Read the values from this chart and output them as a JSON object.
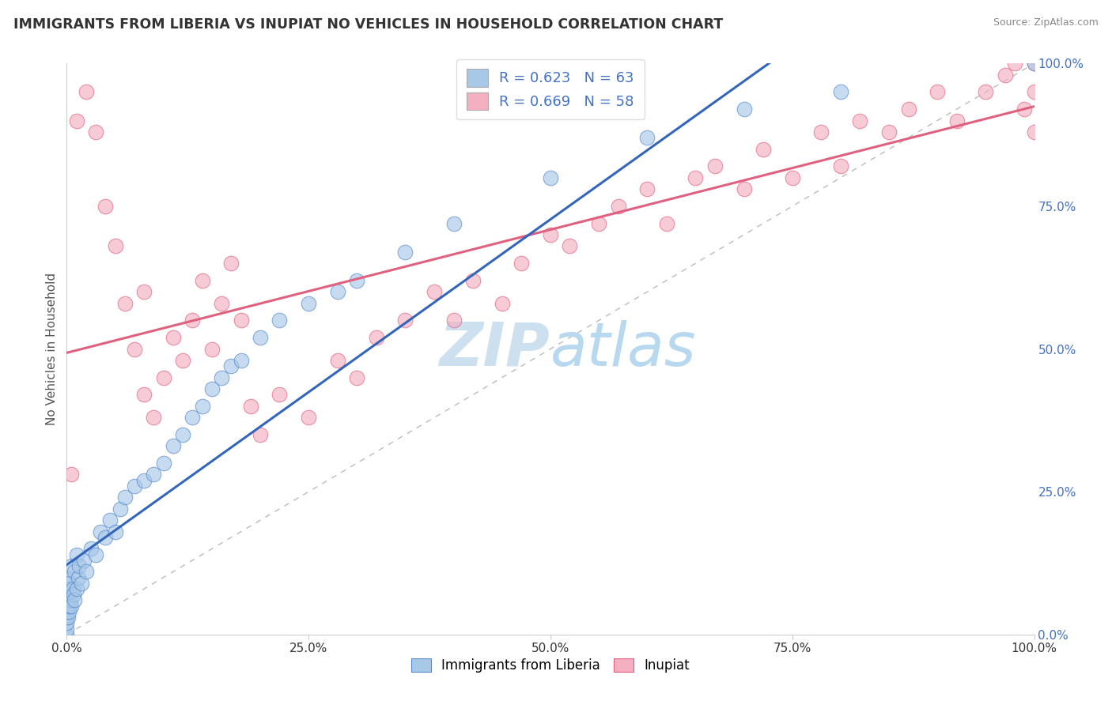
{
  "title": "IMMIGRANTS FROM LIBERIA VS INUPIAT NO VEHICLES IN HOUSEHOLD CORRELATION CHART",
  "source": "Source: ZipAtlas.com",
  "ylabel": "No Vehicles in Household",
  "legend_label1": "Immigrants from Liberia",
  "legend_label2": "Inupiat",
  "r1": 0.623,
  "n1": 63,
  "r2": 0.669,
  "n2": 58,
  "color_blue_fill": "#a8c8e8",
  "color_blue_edge": "#5588cc",
  "color_pink_fill": "#f4b0c0",
  "color_pink_edge": "#e06080",
  "color_blue_line": "#3366bb",
  "color_pink_line": "#e06080",
  "watermark_color": "#cce0f0",
  "blue_x": [
    0.0,
    0.0,
    0.0,
    0.0,
    0.0,
    0.0,
    0.0,
    0.0,
    0.0,
    0.0,
    0.1,
    0.1,
    0.1,
    0.2,
    0.2,
    0.3,
    0.3,
    0.4,
    0.5,
    0.5,
    0.6,
    0.7,
    0.8,
    0.8,
    1.0,
    1.0,
    1.2,
    1.3,
    1.5,
    1.8,
    2.0,
    2.5,
    3.0,
    3.5,
    4.0,
    4.5,
    5.0,
    5.5,
    6.0,
    7.0,
    8.0,
    9.0,
    10.0,
    11.0,
    12.0,
    13.0,
    14.0,
    15.0,
    16.0,
    17.0,
    18.0,
    20.0,
    22.0,
    25.0,
    28.0,
    30.0,
    35.0,
    40.0,
    50.0,
    60.0,
    70.0,
    80.0,
    100.0
  ],
  "blue_y": [
    0.0,
    1.0,
    2.0,
    3.0,
    4.0,
    5.0,
    6.0,
    7.0,
    8.0,
    10.0,
    3.0,
    5.0,
    8.0,
    4.0,
    7.0,
    5.0,
    9.0,
    6.0,
    5.0,
    12.0,
    8.0,
    7.0,
    6.0,
    11.0,
    8.0,
    14.0,
    10.0,
    12.0,
    9.0,
    13.0,
    11.0,
    15.0,
    14.0,
    18.0,
    17.0,
    20.0,
    18.0,
    22.0,
    24.0,
    26.0,
    27.0,
    28.0,
    30.0,
    33.0,
    35.0,
    38.0,
    40.0,
    43.0,
    45.0,
    47.0,
    48.0,
    52.0,
    55.0,
    58.0,
    60.0,
    62.0,
    67.0,
    72.0,
    80.0,
    87.0,
    92.0,
    95.0,
    100.0
  ],
  "pink_x": [
    0.5,
    1.0,
    2.0,
    3.0,
    4.0,
    5.0,
    6.0,
    7.0,
    8.0,
    8.0,
    9.0,
    10.0,
    11.0,
    12.0,
    13.0,
    14.0,
    15.0,
    16.0,
    17.0,
    18.0,
    19.0,
    20.0,
    22.0,
    25.0,
    28.0,
    30.0,
    32.0,
    35.0,
    38.0,
    40.0,
    42.0,
    45.0,
    47.0,
    50.0,
    52.0,
    55.0,
    57.0,
    60.0,
    62.0,
    65.0,
    67.0,
    70.0,
    72.0,
    75.0,
    78.0,
    80.0,
    82.0,
    85.0,
    87.0,
    90.0,
    92.0,
    95.0,
    97.0,
    98.0,
    99.0,
    100.0,
    100.0,
    100.0
  ],
  "pink_y": [
    28.0,
    90.0,
    95.0,
    88.0,
    75.0,
    68.0,
    58.0,
    50.0,
    42.0,
    60.0,
    38.0,
    45.0,
    52.0,
    48.0,
    55.0,
    62.0,
    50.0,
    58.0,
    65.0,
    55.0,
    40.0,
    35.0,
    42.0,
    38.0,
    48.0,
    45.0,
    52.0,
    55.0,
    60.0,
    55.0,
    62.0,
    58.0,
    65.0,
    70.0,
    68.0,
    72.0,
    75.0,
    78.0,
    72.0,
    80.0,
    82.0,
    78.0,
    85.0,
    80.0,
    88.0,
    82.0,
    90.0,
    88.0,
    92.0,
    95.0,
    90.0,
    95.0,
    98.0,
    100.0,
    92.0,
    88.0,
    95.0,
    100.0
  ]
}
